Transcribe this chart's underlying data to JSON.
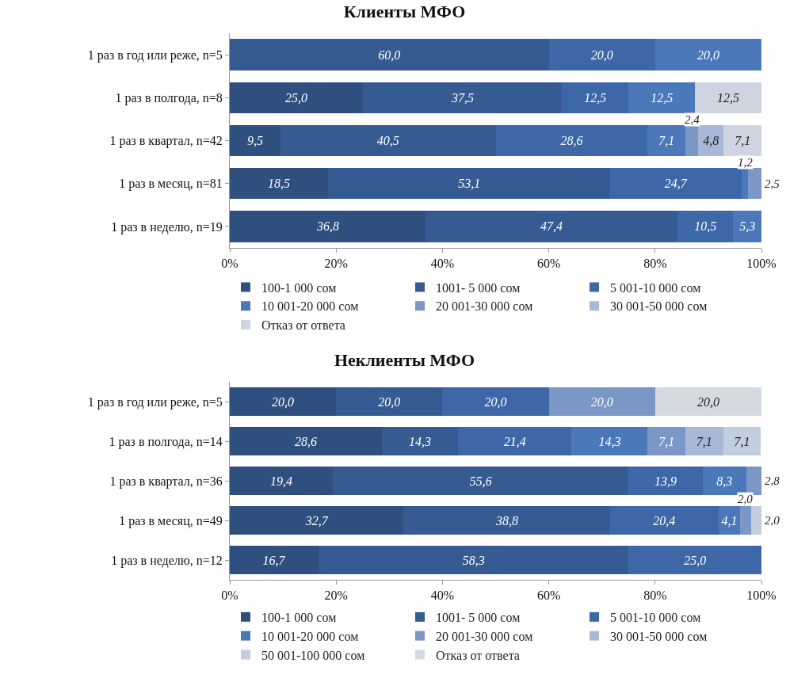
{
  "chart_data": [
    {
      "type": "bar",
      "orientation": "horizontal",
      "stacked": true,
      "title": "Клиенты МФО",
      "categories": [
        "1 раз в год или реже, n=5",
        "1 раз в полгода, n=8",
        "1 раз в квартал, n=42",
        "1 раз в месяц, n=81",
        "1 раз в неделю, n=19"
      ],
      "series": [
        {
          "name": "100-1 000 сом",
          "color": "#2f4f7f",
          "values": [
            null,
            25.0,
            9.5,
            18.5,
            36.8
          ],
          "value_labels": [
            null,
            "25,0",
            "9,5",
            "18,5",
            "36,8"
          ]
        },
        {
          "name": "1001- 5 000 сом",
          "color": "#365b92",
          "values": [
            60.0,
            37.5,
            40.5,
            53.1,
            47.4
          ],
          "value_labels": [
            "60,0",
            "37,5",
            "40,5",
            "53,1",
            "47,4"
          ]
        },
        {
          "name": "5 001-10 000 сом",
          "color": "#3d67a6",
          "values": [
            20.0,
            12.5,
            28.6,
            24.7,
            10.5
          ],
          "value_labels": [
            "20,0",
            "12,5",
            "28,6",
            "24,7",
            "10,5"
          ]
        },
        {
          "name": "10 001-20 000 сом",
          "color": "#4a78b9",
          "values": [
            20.0,
            12.5,
            7.1,
            1.2,
            5.3
          ],
          "value_labels": [
            "20,0",
            "12,5",
            "7,1",
            "1,2",
            "5,3"
          ]
        },
        {
          "name": "20 001-30 000 сом",
          "color": "#7a97c6",
          "values": [
            null,
            null,
            2.4,
            2.5,
            null
          ],
          "value_labels": [
            null,
            null,
            "2,4",
            "2,5",
            null
          ]
        },
        {
          "name": "30 001-50 000 сом",
          "color": "#a9b8d6",
          "values": [
            null,
            null,
            4.8,
            null,
            null
          ],
          "value_labels": [
            null,
            null,
            "4,8",
            null,
            null
          ]
        },
        {
          "name": "Отказ от ответа",
          "color": "#cfd5e0",
          "values": [
            null,
            12.5,
            7.1,
            null,
            null
          ],
          "value_labels": [
            null,
            "12,5",
            "7,1",
            null,
            null
          ]
        }
      ],
      "xlim": [
        0,
        100
      ],
      "xticks": [
        {
          "value": 0,
          "label": "0%"
        },
        {
          "value": 20,
          "label": "20%"
        },
        {
          "value": 40,
          "label": "40%"
        },
        {
          "value": 60,
          "label": "60%"
        },
        {
          "value": 80,
          "label": "80%"
        },
        {
          "value": 100,
          "label": "100%"
        }
      ],
      "grid": false,
      "legend": "bottom"
    },
    {
      "type": "bar",
      "orientation": "horizontal",
      "stacked": true,
      "title": "Неклиенты МФО",
      "categories": [
        "1 раз в год или реже, n=5",
        "1 раз в полгода, n=14",
        "1 раз в квартал, n=36",
        "1 раз в месяц, n=49",
        "1 раз в неделю, n=12"
      ],
      "series": [
        {
          "name": "100-1 000 сом",
          "color": "#2f4f7f",
          "values": [
            20.0,
            28.6,
            19.4,
            32.7,
            16.7
          ],
          "value_labels": [
            "20,0",
            "28,6",
            "19,4",
            "32,7",
            "16,7"
          ]
        },
        {
          "name": "1001- 5 000 сом",
          "color": "#365b92",
          "values": [
            20.0,
            14.3,
            55.6,
            38.8,
            58.3
          ],
          "value_labels": [
            "20,0",
            "14,3",
            "55,6",
            "38,8",
            "58,3"
          ]
        },
        {
          "name": "5 001-10 000 сом",
          "color": "#3d67a6",
          "values": [
            20.0,
            21.4,
            13.9,
            20.4,
            25.0
          ],
          "value_labels": [
            "20,0",
            "21,4",
            "13,9",
            "20,4",
            "25,0"
          ]
        },
        {
          "name": "10 001-20 000 сом",
          "color": "#4a78b9",
          "values": [
            null,
            14.3,
            8.3,
            4.1,
            null
          ],
          "value_labels": [
            null,
            "14,3",
            "8,3",
            "4,1",
            null
          ]
        },
        {
          "name": "20 001-30 000 сом",
          "color": "#7a97c6",
          "values": [
            20.0,
            7.1,
            2.8,
            2.0,
            null
          ],
          "value_labels": [
            "20,0",
            "7,1",
            "2,8",
            "2,0",
            null
          ]
        },
        {
          "name": "30 001-50 000 сом",
          "color": "#a9b8d6",
          "values": [
            null,
            7.1,
            null,
            null,
            null
          ],
          "value_labels": [
            null,
            "7,1",
            null,
            null,
            null
          ]
        },
        {
          "name": "50 001-100 000 сом",
          "color": "#c3cde0",
          "values": [
            null,
            7.1,
            null,
            2.0,
            null
          ],
          "value_labels": [
            null,
            "7,1",
            null,
            "2,0",
            null
          ]
        },
        {
          "name": "Отказ от ответа",
          "color": "#d5d9e0",
          "values": [
            20.0,
            null,
            null,
            null,
            null
          ],
          "value_labels": [
            "20,0",
            null,
            null,
            null,
            null
          ]
        }
      ],
      "xlim": [
        0,
        100
      ],
      "xticks": [
        {
          "value": 0,
          "label": "0%"
        },
        {
          "value": 20,
          "label": "20%"
        },
        {
          "value": 40,
          "label": "40%"
        },
        {
          "value": 60,
          "label": "60%"
        },
        {
          "value": 80,
          "label": "80%"
        },
        {
          "value": 100,
          "label": "100%"
        }
      ],
      "grid": false,
      "legend": "bottom"
    }
  ]
}
